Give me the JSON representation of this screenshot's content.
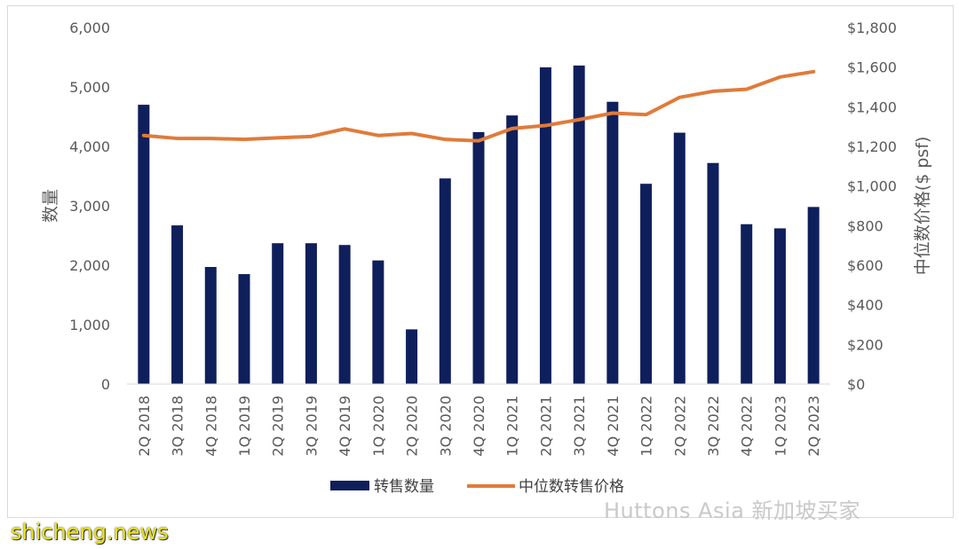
{
  "chart_data": {
    "type": "bar",
    "categories": [
      "2Q 2018",
      "3Q 2018",
      "4Q 2018",
      "1Q 2019",
      "2Q 2019",
      "3Q 2019",
      "4Q 2019",
      "1Q 2020",
      "2Q 2020",
      "3Q 2020",
      "4Q 2020",
      "1Q 2021",
      "2Q 2021",
      "3Q 2021",
      "4Q 2021",
      "1Q 2022",
      "2Q 2022",
      "3Q 2022",
      "4Q 2022",
      "1Q 2023",
      "2Q 2023"
    ],
    "series": [
      {
        "name": "转售数量",
        "type": "bar",
        "axis": "left",
        "color": "#0f1f5c",
        "values": [
          4700,
          2670,
          1970,
          1850,
          2370,
          2370,
          2340,
          2080,
          920,
          3460,
          4240,
          4520,
          5330,
          5360,
          4750,
          3370,
          4230,
          3720,
          2690,
          2620,
          2980
        ]
      },
      {
        "name": "中位数转售价格",
        "type": "line",
        "axis": "right",
        "color": "#e07b3a",
        "values": [
          1255,
          1240,
          1240,
          1235,
          1243,
          1250,
          1288,
          1255,
          1265,
          1235,
          1228,
          1290,
          1305,
          1335,
          1368,
          1360,
          1447,
          1478,
          1488,
          1550,
          1577
        ]
      }
    ],
    "y_left": {
      "label": "数量",
      "min": 0,
      "max": 6000,
      "ticks": [
        "0",
        "1,000",
        "2,000",
        "3,000",
        "4,000",
        "5,000",
        "6,000"
      ]
    },
    "y_right": {
      "label": "中位数价格($ psf)",
      "min": 0,
      "max": 1800,
      "ticks": [
        "$0",
        "$200",
        "$400",
        "$600",
        "$800",
        "$1,000",
        "$1,200",
        "$1,400",
        "$1,600",
        "$1,800"
      ]
    },
    "legend_position": "bottom",
    "grid": false
  },
  "watermarks": {
    "source": "Huttons Asia 新加坡买家",
    "site": "shicheng.news"
  }
}
